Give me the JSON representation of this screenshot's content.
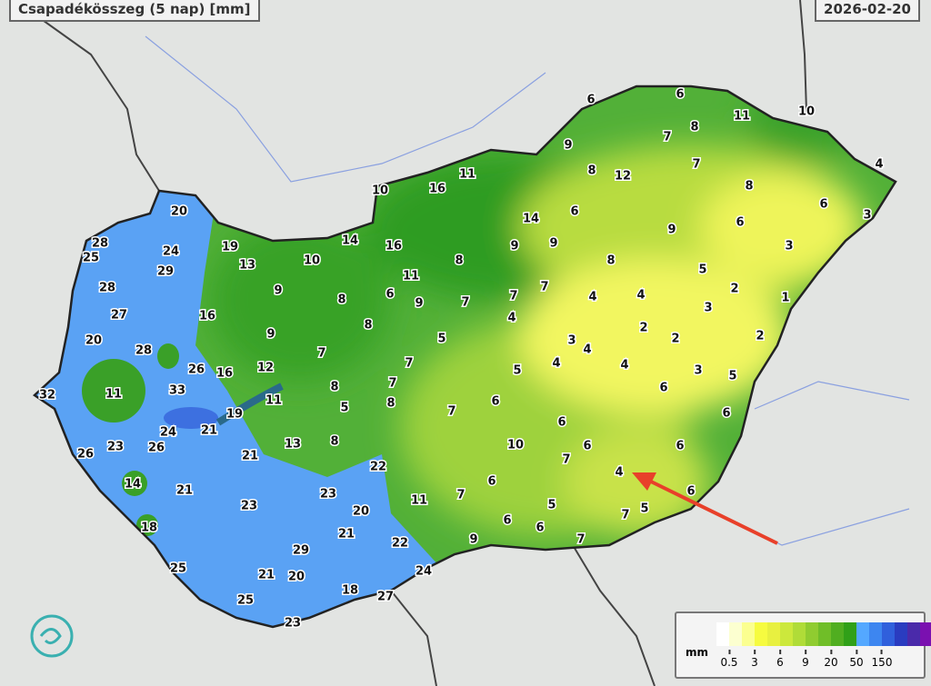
{
  "header": {
    "title": "Csapadékösszeg (5 nap) [mm]",
    "date": "2026-02-20"
  },
  "legend": {
    "unit": "mm",
    "ticks": [
      "0.5",
      "3",
      "6",
      "9",
      "20",
      "50",
      "150"
    ],
    "colors": [
      "#ffffff",
      "#fcffd0",
      "#fbff90",
      "#f6fb40",
      "#e8f040",
      "#cce83c",
      "#b0dc38",
      "#90cc30",
      "#70be28",
      "#50ae20",
      "#30a018",
      "#54a8ff",
      "#3d86f0",
      "#3060dc",
      "#2a3cc0",
      "#4a2aaa",
      "#7a10b0",
      "#5a0040"
    ]
  },
  "colors": {
    "country_border": "#222222",
    "annotation_arrow": "#e8402a",
    "high": "#5aa0f0",
    "mid": "#48a830",
    "low": "#f4f860"
  },
  "annotation": {
    "type": "arrow",
    "points_to_value": "4"
  },
  "stations": [
    20,
    28,
    25,
    24,
    29,
    28,
    27,
    20,
    28,
    26,
    32,
    11,
    33,
    16,
    12,
    11,
    19,
    21,
    24,
    26,
    23,
    26,
    14,
    21,
    21,
    13,
    8,
    22,
    23,
    23,
    20,
    21,
    29,
    21,
    20,
    22,
    11,
    18,
    25,
    25,
    23,
    18,
    27,
    24,
    16,
    19,
    13,
    10,
    9,
    9,
    8,
    8,
    14,
    10,
    16,
    11,
    16,
    11,
    6,
    9,
    8,
    7,
    9,
    9,
    14,
    6,
    9,
    8,
    12,
    6,
    6,
    8,
    7,
    11,
    10,
    7,
    8,
    4,
    6,
    3,
    6,
    9,
    3,
    5,
    2,
    1,
    3,
    4,
    4,
    2,
    2,
    2,
    3,
    4,
    4,
    4,
    3,
    6,
    5,
    6,
    6,
    6,
    5,
    7,
    4,
    6,
    6,
    7,
    7,
    5,
    6,
    6,
    9,
    6,
    7,
    10,
    6,
    7,
    5,
    5,
    4,
    7,
    7,
    8,
    7,
    7,
    7,
    8,
    5,
    8
  ]
}
